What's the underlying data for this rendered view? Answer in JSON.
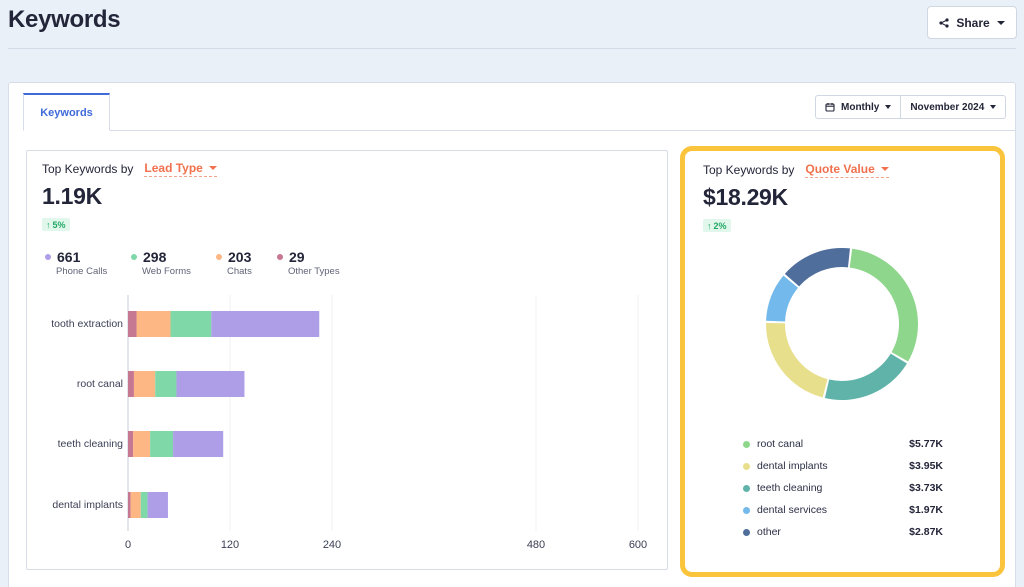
{
  "page": {
    "title": "Keywords",
    "share_label": "Share"
  },
  "tabs": [
    {
      "label": "Keywords",
      "active": true
    }
  ],
  "period": {
    "granularity": "Monthly",
    "month": "November 2024"
  },
  "lead_card": {
    "heading": "Top Keywords by",
    "dropdown": "Lead Type",
    "total": "1.19K",
    "delta": "5%",
    "stats": [
      {
        "value": "661",
        "label": "Phone Calls",
        "color": "#ae9ee8"
      },
      {
        "value": "298",
        "label": "Web Forms",
        "color": "#7fd8a8"
      },
      {
        "value": "203",
        "label": "Chats",
        "color": "#fcb785"
      },
      {
        "value": "29",
        "label": "Other Types",
        "color": "#c67892"
      }
    ]
  },
  "quote_card": {
    "heading": "Top Keywords by",
    "dropdown": "Quote Value",
    "total": "$18.29K",
    "delta": "2%",
    "legend": [
      {
        "name": "root canal",
        "value": "$5.77K",
        "color": "#8fd68d"
      },
      {
        "name": "dental implants",
        "value": "$3.95K",
        "color": "#e8df8d"
      },
      {
        "name": "teeth cleaning",
        "value": "$3.73K",
        "color": "#5fb3a8"
      },
      {
        "name": "dental services",
        "value": "$1.97K",
        "color": "#74b9ec"
      },
      {
        "name": "other",
        "value": "$2.87K",
        "color": "#4f6e9c"
      }
    ]
  },
  "chart_data": [
    {
      "type": "bar",
      "orientation": "horizontal",
      "stacked": true,
      "title": "Top Keywords by Lead Type",
      "categories": [
        "tooth extraction",
        "root canal",
        "teeth cleaning",
        "dental implants"
      ],
      "series": [
        {
          "name": "Other Types",
          "color": "#c67892",
          "values": [
            10,
            7,
            6,
            3
          ]
        },
        {
          "name": "Chats",
          "color": "#fcb785",
          "values": [
            40,
            25,
            20,
            12
          ]
        },
        {
          "name": "Web Forms",
          "color": "#7fd8a8",
          "values": [
            48,
            25,
            27,
            8
          ]
        },
        {
          "name": "Phone Calls",
          "color": "#ae9ee8",
          "values": [
            127,
            80,
            59,
            24
          ]
        }
      ],
      "x_ticks": [
        0,
        120,
        240,
        480,
        600
      ],
      "xlim": [
        0,
        600
      ]
    },
    {
      "type": "pie",
      "donut": true,
      "title": "Top Keywords by Quote Value",
      "labels": [
        "root canal",
        "teeth cleaning",
        "dental implants",
        "dental services",
        "other"
      ],
      "values": [
        5.77,
        3.73,
        3.95,
        1.97,
        2.87
      ],
      "colors": [
        "#8fd68d",
        "#5fb3a8",
        "#e8df8d",
        "#74b9ec",
        "#4f6e9c"
      ],
      "unit": "$K"
    }
  ]
}
